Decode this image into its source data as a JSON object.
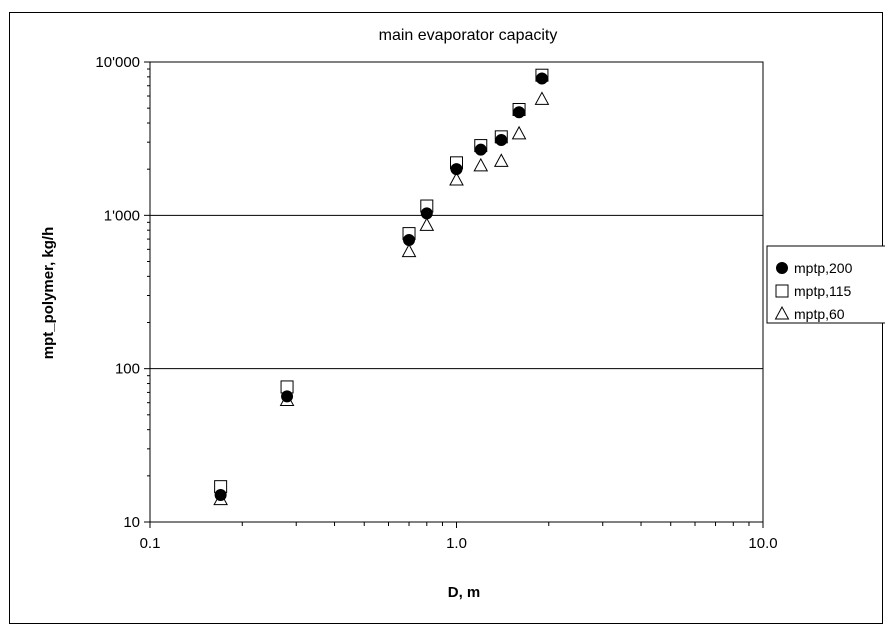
{
  "chart_data": {
    "type": "scatter",
    "title": "main evaporator capacity",
    "xlabel": "D, m",
    "ylabel": "mpt_polymer, kg/h",
    "x_scale": "log",
    "y_scale": "log",
    "xlim": [
      0.1,
      10.0
    ],
    "ylim": [
      10,
      10000
    ],
    "x_ticks": [
      "0.1",
      "1.0",
      "10.0"
    ],
    "y_ticks": [
      "10",
      "100",
      "1'000",
      "10'000"
    ],
    "grid": "horizontal major",
    "legend_position": "right",
    "series": [
      {
        "name": "mptp,200",
        "marker": "filled-circle",
        "color": "#000000",
        "points": [
          [
            0.17,
            15
          ],
          [
            0.28,
            66
          ],
          [
            0.7,
            690
          ],
          [
            0.8,
            1030
          ],
          [
            1.0,
            2000
          ],
          [
            1.2,
            2680
          ],
          [
            1.4,
            3100
          ],
          [
            1.6,
            4700
          ],
          [
            1.9,
            7800
          ]
        ]
      },
      {
        "name": "mptp,115",
        "marker": "open-square",
        "color": "#000000",
        "points": [
          [
            0.17,
            17
          ],
          [
            0.28,
            76
          ],
          [
            0.7,
            760
          ],
          [
            0.8,
            1150
          ],
          [
            1.0,
            2200
          ],
          [
            1.2,
            2850
          ],
          [
            1.4,
            3250
          ],
          [
            1.6,
            4900
          ],
          [
            1.9,
            8200
          ]
        ]
      },
      {
        "name": "mptp,60",
        "marker": "open-triangle",
        "color": "#000000",
        "points": [
          [
            0.17,
            14
          ],
          [
            0.28,
            62
          ],
          [
            0.7,
            580
          ],
          [
            0.8,
            860
          ],
          [
            1.0,
            1700
          ],
          [
            1.2,
            2100
          ],
          [
            1.4,
            2250
          ],
          [
            1.6,
            3400
          ],
          [
            1.9,
            5700
          ]
        ]
      }
    ]
  }
}
